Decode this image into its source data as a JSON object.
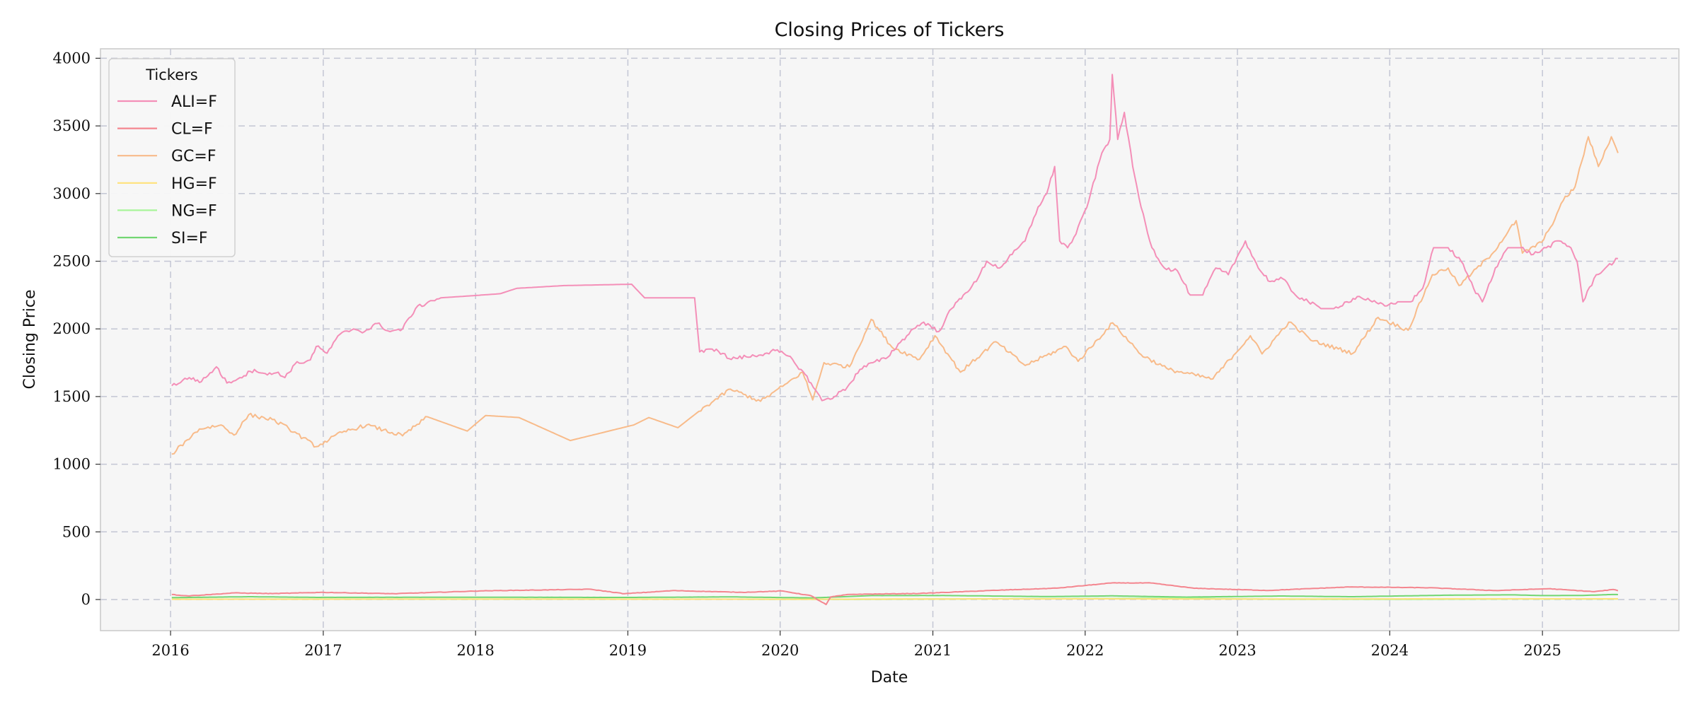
{
  "chart_data": {
    "type": "line",
    "title": "Closing Prices of Tickers",
    "xlabel": "Date",
    "ylabel": "Closing Price",
    "xlim": [
      "2015-07-17",
      "2025-11-24"
    ],
    "ylim": [
      -230,
      4070
    ],
    "x_ticks": [
      "2016",
      "2017",
      "2018",
      "2019",
      "2020",
      "2021",
      "2022",
      "2023",
      "2024",
      "2025"
    ],
    "y_ticks": [
      0,
      500,
      1000,
      1500,
      2000,
      2500,
      3000,
      3500,
      4000
    ],
    "grid": true,
    "legend": {
      "title": "Tickers",
      "position": "top-left"
    },
    "series": [
      {
        "name": "ALI=F",
        "color": "#f48fb8",
        "points": [
          [
            "2016-01-04",
            1580
          ],
          [
            "2016-02-15",
            1640
          ],
          [
            "2016-03-15",
            1610
          ],
          [
            "2016-04-20",
            1720
          ],
          [
            "2016-05-15",
            1600
          ],
          [
            "2016-06-15",
            1640
          ],
          [
            "2016-07-20",
            1700
          ],
          [
            "2016-08-20",
            1660
          ],
          [
            "2016-09-15",
            1680
          ],
          [
            "2016-10-01",
            1640
          ],
          [
            "2016-10-25",
            1740
          ],
          [
            "2016-12-01",
            1770
          ],
          [
            "2016-12-15",
            1870
          ],
          [
            "2017-01-10",
            1820
          ],
          [
            "2017-02-10",
            1960
          ],
          [
            "2017-03-15",
            2000
          ],
          [
            "2017-04-10",
            1980
          ],
          [
            "2017-05-10",
            2040
          ],
          [
            "2017-06-10",
            1980
          ],
          [
            "2017-07-10",
            2000
          ],
          [
            "2017-08-10",
            2150
          ],
          [
            "2017-09-10",
            2200
          ],
          [
            "2017-10-10",
            2230
          ],
          [
            "2017-12-01",
            2240
          ],
          [
            "2018-03-01",
            2260
          ],
          [
            "2018-04-10",
            2300
          ],
          [
            "2018-08-01",
            2320
          ],
          [
            "2019-01-10",
            2330
          ],
          [
            "2019-02-10",
            2230
          ],
          [
            "2019-06-10",
            2230
          ],
          [
            "2019-06-22",
            1830
          ],
          [
            "2019-08-01",
            1850
          ],
          [
            "2019-09-01",
            1780
          ],
          [
            "2019-11-01",
            1800
          ],
          [
            "2019-12-20",
            1840
          ],
          [
            "2020-01-20",
            1800
          ],
          [
            "2020-02-20",
            1700
          ],
          [
            "2020-03-15",
            1600
          ],
          [
            "2020-04-10",
            1470
          ],
          [
            "2020-05-10",
            1500
          ],
          [
            "2020-06-10",
            1570
          ],
          [
            "2020-07-10",
            1700
          ],
          [
            "2020-08-10",
            1750
          ],
          [
            "2020-09-10",
            1780
          ],
          [
            "2020-10-15",
            1900
          ],
          [
            "2020-11-15",
            2000
          ],
          [
            "2020-12-10",
            2050
          ],
          [
            "2021-01-15",
            1980
          ],
          [
            "2021-02-15",
            2150
          ],
          [
            "2021-03-15",
            2250
          ],
          [
            "2021-04-15",
            2350
          ],
          [
            "2021-05-10",
            2500
          ],
          [
            "2021-06-10",
            2450
          ],
          [
            "2021-07-10",
            2550
          ],
          [
            "2021-08-10",
            2650
          ],
          [
            "2021-09-10",
            2900
          ],
          [
            "2021-10-01",
            3000
          ],
          [
            "2021-10-20",
            3200
          ],
          [
            "2021-11-01",
            2650
          ],
          [
            "2021-11-20",
            2600
          ],
          [
            "2021-12-10",
            2700
          ],
          [
            "2022-01-10",
            2950
          ],
          [
            "2022-02-10",
            3300
          ],
          [
            "2022-03-01",
            3400
          ],
          [
            "2022-03-07",
            3880
          ],
          [
            "2022-03-20",
            3400
          ],
          [
            "2022-04-05",
            3600
          ],
          [
            "2022-04-25",
            3200
          ],
          [
            "2022-05-15",
            2900
          ],
          [
            "2022-06-10",
            2600
          ],
          [
            "2022-07-10",
            2450
          ],
          [
            "2022-08-10",
            2430
          ],
          [
            "2022-09-10",
            2250
          ],
          [
            "2022-10-10",
            2250
          ],
          [
            "2022-11-10",
            2450
          ],
          [
            "2022-12-10",
            2400
          ],
          [
            "2023-01-20",
            2650
          ],
          [
            "2023-02-20",
            2450
          ],
          [
            "2023-03-20",
            2350
          ],
          [
            "2023-04-20",
            2370
          ],
          [
            "2023-05-20",
            2250
          ],
          [
            "2023-06-20",
            2200
          ],
          [
            "2023-07-20",
            2150
          ],
          [
            "2023-08-20",
            2150
          ],
          [
            "2023-09-20",
            2200
          ],
          [
            "2023-10-20",
            2240
          ],
          [
            "2023-11-20",
            2200
          ],
          [
            "2023-12-20",
            2170
          ],
          [
            "2024-01-20",
            2200
          ],
          [
            "2024-02-20",
            2200
          ],
          [
            "2024-03-20",
            2300
          ],
          [
            "2024-04-15",
            2600
          ],
          [
            "2024-05-20",
            2600
          ],
          [
            "2024-06-20",
            2500
          ],
          [
            "2024-07-20",
            2300
          ],
          [
            "2024-08-10",
            2200
          ],
          [
            "2024-09-10",
            2450
          ],
          [
            "2024-10-10",
            2600
          ],
          [
            "2024-11-10",
            2600
          ],
          [
            "2024-12-10",
            2550
          ],
          [
            "2025-01-10",
            2600
          ],
          [
            "2025-02-10",
            2650
          ],
          [
            "2025-03-10",
            2600
          ],
          [
            "2025-03-25",
            2500
          ],
          [
            "2025-04-08",
            2200
          ],
          [
            "2025-05-10",
            2400
          ],
          [
            "2025-06-01",
            2450
          ],
          [
            "2025-07-01",
            2520
          ]
        ]
      },
      {
        "name": "CL=F",
        "color": "#f4868f",
        "points": [
          [
            "2016-01-04",
            37
          ],
          [
            "2016-02-11",
            27
          ],
          [
            "2016-04-01",
            36
          ],
          [
            "2016-06-01",
            49
          ],
          [
            "2016-09-01",
            44
          ],
          [
            "2017-01-01",
            53
          ],
          [
            "2017-06-20",
            43
          ],
          [
            "2018-01-15",
            64
          ],
          [
            "2018-10-03",
            76
          ],
          [
            "2018-12-24",
            43
          ],
          [
            "2019-04-20",
            66
          ],
          [
            "2019-10-01",
            53
          ],
          [
            "2020-01-06",
            63
          ],
          [
            "2020-03-15",
            28
          ],
          [
            "2020-04-20",
            -37
          ],
          [
            "2020-05-01",
            19
          ],
          [
            "2020-06-15",
            38
          ],
          [
            "2020-12-01",
            45
          ],
          [
            "2021-06-01",
            68
          ],
          [
            "2021-10-25",
            84
          ],
          [
            "2022-03-08",
            123
          ],
          [
            "2022-06-08",
            122
          ],
          [
            "2022-09-20",
            83
          ],
          [
            "2023-03-15",
            67
          ],
          [
            "2023-09-27",
            93
          ],
          [
            "2024-04-05",
            87
          ],
          [
            "2024-09-10",
            66
          ],
          [
            "2025-01-15",
            80
          ],
          [
            "2025-05-05",
            58
          ],
          [
            "2025-06-20",
            74
          ],
          [
            "2025-07-01",
            65
          ]
        ]
      },
      {
        "name": "GC=F",
        "color": "#f8bb8a",
        "points": [
          [
            "2016-01-04",
            1075
          ],
          [
            "2016-02-10",
            1180
          ],
          [
            "2016-03-10",
            1260
          ],
          [
            "2016-05-01",
            1290
          ],
          [
            "2016-06-01",
            1215
          ],
          [
            "2016-07-06",
            1365
          ],
          [
            "2016-09-01",
            1330
          ],
          [
            "2016-10-10",
            1265
          ],
          [
            "2016-12-15",
            1130
          ],
          [
            "2017-02-15",
            1235
          ],
          [
            "2017-04-15",
            1290
          ],
          [
            "2017-07-10",
            1210
          ],
          [
            "2017-09-08",
            1350
          ],
          [
            "2017-12-12",
            1245
          ],
          [
            "2018-01-25",
            1360
          ],
          [
            "2018-04-15",
            1345
          ],
          [
            "2018-08-16",
            1175
          ],
          [
            "2019-01-15",
            1290
          ],
          [
            "2019-02-20",
            1345
          ],
          [
            "2019-05-01",
            1270
          ],
          [
            "2019-06-20",
            1390
          ],
          [
            "2019-09-04",
            1555
          ],
          [
            "2019-11-15",
            1465
          ],
          [
            "2020-01-07",
            1575
          ],
          [
            "2020-02-24",
            1680
          ],
          [
            "2020-03-19",
            1475
          ],
          [
            "2020-04-15",
            1750
          ],
          [
            "2020-06-15",
            1720
          ],
          [
            "2020-08-06",
            2070
          ],
          [
            "2020-09-25",
            1865
          ],
          [
            "2020-11-30",
            1775
          ],
          [
            "2021-01-06",
            1950
          ],
          [
            "2021-03-08",
            1680
          ],
          [
            "2021-06-01",
            1905
          ],
          [
            "2021-08-10",
            1730
          ],
          [
            "2021-11-16",
            1870
          ],
          [
            "2021-12-15",
            1760
          ],
          [
            "2022-03-08",
            2045
          ],
          [
            "2022-05-15",
            1810
          ],
          [
            "2022-07-20",
            1700
          ],
          [
            "2022-11-03",
            1630
          ],
          [
            "2023-02-01",
            1950
          ],
          [
            "2023-03-01",
            1815
          ],
          [
            "2023-05-04",
            2050
          ],
          [
            "2023-07-01",
            1910
          ],
          [
            "2023-10-05",
            1820
          ],
          [
            "2023-12-04",
            2085
          ],
          [
            "2024-02-14",
            1990
          ],
          [
            "2024-04-12",
            2400
          ],
          [
            "2024-05-20",
            2450
          ],
          [
            "2024-06-15",
            2320
          ],
          [
            "2024-09-01",
            2550
          ],
          [
            "2024-10-30",
            2800
          ],
          [
            "2024-11-14",
            2560
          ],
          [
            "2024-12-30",
            2640
          ],
          [
            "2025-01-20",
            2750
          ],
          [
            "2025-02-20",
            2950
          ],
          [
            "2025-03-20",
            3050
          ],
          [
            "2025-04-21",
            3420
          ],
          [
            "2025-05-15",
            3200
          ],
          [
            "2025-06-15",
            3420
          ],
          [
            "2025-07-01",
            3300
          ]
        ]
      },
      {
        "name": "HG=F",
        "color": "#ffe27a",
        "points": [
          [
            "2016-01-04",
            2.1
          ],
          [
            "2017-01-01",
            2.6
          ],
          [
            "2018-01-01",
            3.2
          ],
          [
            "2019-01-01",
            2.7
          ],
          [
            "2020-03-20",
            2.1
          ],
          [
            "2021-05-10",
            4.8
          ],
          [
            "2022-03-07",
            4.9
          ],
          [
            "2023-01-01",
            3.8
          ],
          [
            "2024-05-20",
            5.1
          ],
          [
            "2025-03-26",
            5.2
          ],
          [
            "2025-07-01",
            5.0
          ]
        ]
      },
      {
        "name": "NG=F",
        "color": "#a8f59a",
        "points": [
          [
            "2016-01-04",
            2.3
          ],
          [
            "2017-01-01",
            3.3
          ],
          [
            "2018-01-01",
            2.9
          ],
          [
            "2019-01-01",
            3.0
          ],
          [
            "2020-06-25",
            1.5
          ],
          [
            "2021-10-05",
            6.3
          ],
          [
            "2022-08-22",
            9.7
          ],
          [
            "2023-04-01",
            2.0
          ],
          [
            "2024-02-20",
            1.6
          ],
          [
            "2025-03-10",
            4.5
          ],
          [
            "2025-07-01",
            3.5
          ]
        ]
      },
      {
        "name": "SI=F",
        "color": "#72d672",
        "points": [
          [
            "2016-01-04",
            13.8
          ],
          [
            "2016-07-05",
            20.7
          ],
          [
            "2016-12-15",
            15.8
          ],
          [
            "2018-01-01",
            17.0
          ],
          [
            "2019-01-01",
            15.5
          ],
          [
            "2019-09-04",
            19.5
          ],
          [
            "2020-03-18",
            12.0
          ],
          [
            "2020-08-07",
            29.0
          ],
          [
            "2021-02-01",
            29.4
          ],
          [
            "2021-09-30",
            21.9
          ],
          [
            "2022-03-08",
            26.9
          ],
          [
            "2022-09-01",
            17.8
          ],
          [
            "2023-04-14",
            26.0
          ],
          [
            "2023-10-03",
            20.7
          ],
          [
            "2024-05-20",
            32.0
          ],
          [
            "2024-10-22",
            34.5
          ],
          [
            "2025-01-01",
            29.0
          ],
          [
            "2025-04-08",
            30.0
          ],
          [
            "2025-06-17",
            37.0
          ],
          [
            "2025-07-01",
            36.5
          ]
        ]
      }
    ]
  }
}
